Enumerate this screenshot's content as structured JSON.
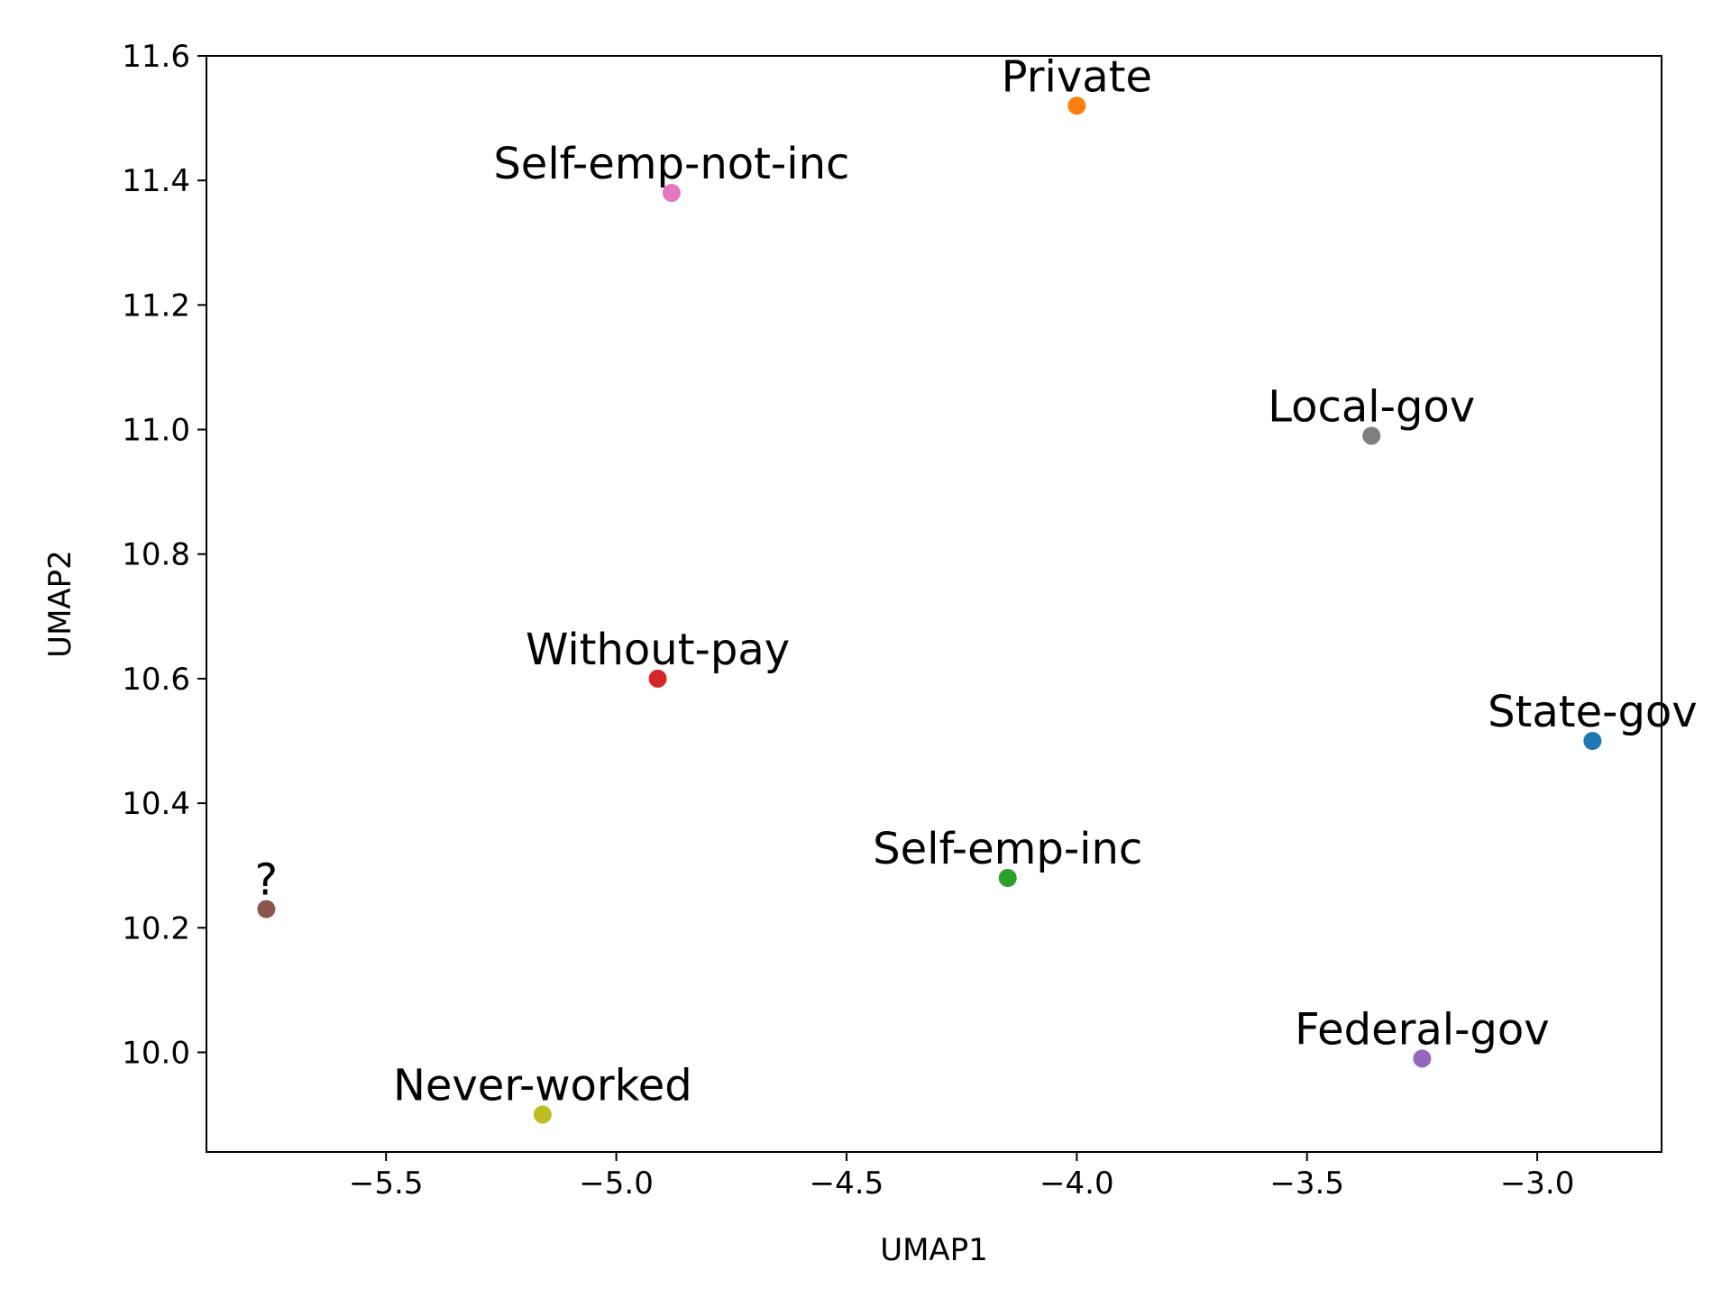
{
  "chart_data": {
    "type": "scatter",
    "title": "",
    "xlabel": "UMAP1",
    "ylabel": "UMAP2",
    "xlim": [
      -5.89,
      -2.73
    ],
    "ylim": [
      9.84,
      11.6
    ],
    "xticks": [
      -5.5,
      -5.0,
      -4.5,
      -4.0,
      -3.5,
      -3.0
    ],
    "xtick_labels": [
      "−5.5",
      "−5.0",
      "−4.5",
      "−4.0",
      "−3.5",
      "−3.0"
    ],
    "yticks": [
      10.0,
      10.2,
      10.4,
      10.6,
      10.8,
      11.0,
      11.2,
      11.4,
      11.6
    ],
    "ytick_labels": [
      "10.0",
      "10.2",
      "10.4",
      "10.6",
      "10.8",
      "11.0",
      "11.2",
      "11.4",
      "11.6"
    ],
    "grid": false,
    "points": [
      {
        "label": "State-gov",
        "x": -2.88,
        "y": 10.5,
        "color": "#1f77b4"
      },
      {
        "label": "Private",
        "x": -4.0,
        "y": 11.52,
        "color": "#ff7f0e"
      },
      {
        "label": "Self-emp-inc",
        "x": -4.15,
        "y": 10.28,
        "color": "#2ca02c"
      },
      {
        "label": "Without-pay",
        "x": -4.91,
        "y": 10.6,
        "color": "#d62728"
      },
      {
        "label": "Federal-gov",
        "x": -3.25,
        "y": 9.99,
        "color": "#9467bd"
      },
      {
        "label": "?",
        "x": -5.76,
        "y": 10.23,
        "color": "#8c564b"
      },
      {
        "label": "Self-emp-not-inc",
        "x": -4.88,
        "y": 11.38,
        "color": "#e377c2"
      },
      {
        "label": "Local-gov",
        "x": -3.36,
        "y": 10.99,
        "color": "#7f7f7f"
      },
      {
        "label": "Never-worked",
        "x": -5.16,
        "y": 9.9,
        "color": "#bcbd22"
      }
    ]
  }
}
